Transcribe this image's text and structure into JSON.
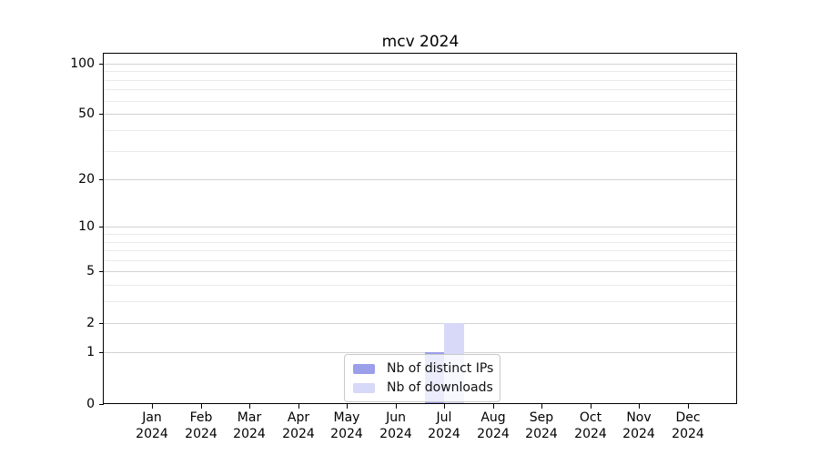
{
  "chart_data": {
    "type": "bar",
    "title": "mcv 2024",
    "categories": [
      {
        "month": "Jan",
        "year": "2024"
      },
      {
        "month": "Feb",
        "year": "2024"
      },
      {
        "month": "Mar",
        "year": "2024"
      },
      {
        "month": "Apr",
        "year": "2024"
      },
      {
        "month": "May",
        "year": "2024"
      },
      {
        "month": "Jun",
        "year": "2024"
      },
      {
        "month": "Jul",
        "year": "2024"
      },
      {
        "month": "Aug",
        "year": "2024"
      },
      {
        "month": "Sep",
        "year": "2024"
      },
      {
        "month": "Oct",
        "year": "2024"
      },
      {
        "month": "Nov",
        "year": "2024"
      },
      {
        "month": "Dec",
        "year": "2024"
      }
    ],
    "series": [
      {
        "name": "Nb of distinct IPs",
        "color": "#9b9fea",
        "values": [
          0,
          0,
          0,
          0,
          0,
          0,
          1,
          0,
          0,
          0,
          0,
          0
        ]
      },
      {
        "name": "Nb of downloads",
        "color": "#d8d9f8",
        "values": [
          0,
          0,
          0,
          0,
          0,
          0,
          2,
          0,
          0,
          0,
          0,
          0
        ]
      }
    ],
    "y_scale": "log1p",
    "ylim": [
      0,
      114.6
    ],
    "y_major_ticks": [
      0,
      1,
      2,
      5,
      10,
      20,
      50,
      100
    ],
    "y_minor_ticks": [
      3,
      4,
      6,
      7,
      8,
      9,
      30,
      40,
      60,
      70,
      80,
      90
    ],
    "grid": "horizontal",
    "legend_position": "lower center"
  },
  "colors": {
    "axis": "#000000",
    "grid_major": "#d2d2d2",
    "grid_minor": "#eaeaea",
    "legend_border": "#c9c9c9",
    "background": "#ffffff"
  }
}
